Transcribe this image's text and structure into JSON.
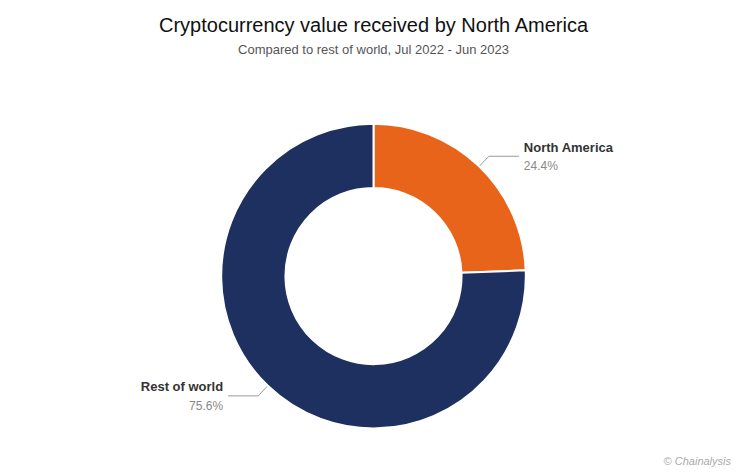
{
  "chart_data": {
    "type": "donut",
    "title": "Cryptocurrency value received by North America",
    "subtitle": "Compared to rest of world, Jul 2022 - Jun 2023",
    "categories": [
      "North America",
      "Rest of world"
    ],
    "values": [
      24.4,
      75.6
    ],
    "value_labels": [
      "24.4%",
      "75.6%"
    ],
    "colors": [
      "#E8641A",
      "#1E3060"
    ],
    "data_labels": true,
    "annotations": [
      "© Chainalysis"
    ]
  }
}
